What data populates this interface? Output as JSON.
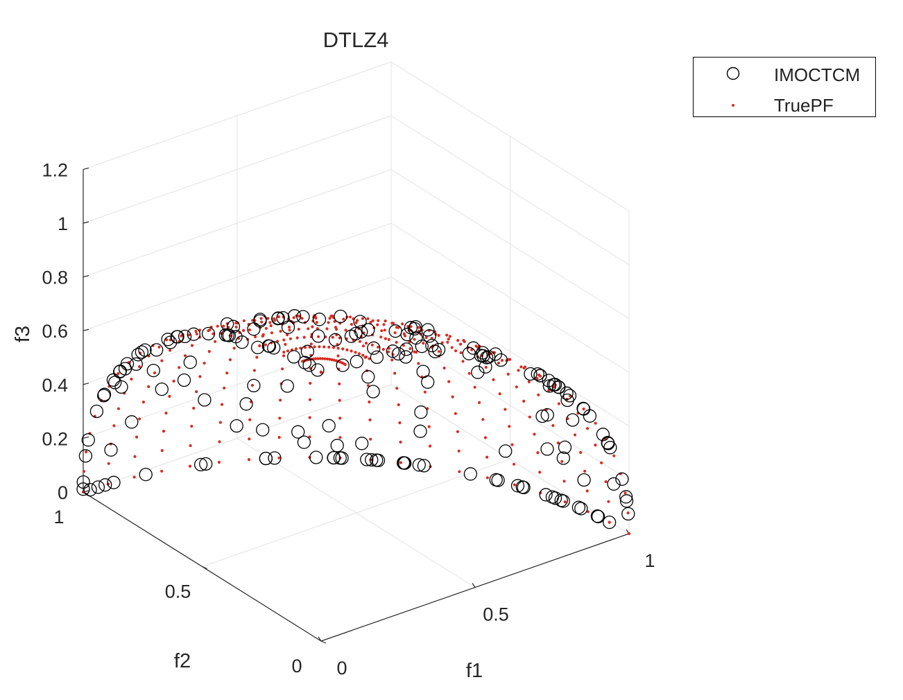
{
  "chart_data": {
    "type": "scatter",
    "projection": "3d",
    "title": "DTLZ4",
    "xlabel": "f1",
    "ylabel": "f2",
    "zlabel": "f3",
    "xlim": [
      0,
      1
    ],
    "ylim": [
      0,
      1
    ],
    "zlim": [
      0,
      1.2
    ],
    "x_ticks": [
      "0",
      "0.5",
      "1"
    ],
    "y_ticks": [
      "0",
      "0.5",
      "1"
    ],
    "z_ticks": [
      "0",
      "0.2",
      "0.4",
      "0.6",
      "0.8",
      "1",
      "1.2"
    ],
    "grid": true,
    "legend_position": "top-right",
    "series": [
      {
        "name": "IMOCTCM",
        "marker": "open-circle",
        "color": "#000000",
        "description": "Obtained solutions spread over the unit spherical Pareto front (f1^2+f2^2+f3^2=1)"
      },
      {
        "name": "TruePF",
        "marker": "dot",
        "color": "#d92b20",
        "description": "True Pareto front: octant of unit sphere, f1^2+f2^2+f3^2=1"
      }
    ]
  },
  "colors": {
    "grid": "#e3e3e3",
    "axis": "#262626",
    "true_pf": "#d92b20",
    "solutions": "#000000"
  }
}
